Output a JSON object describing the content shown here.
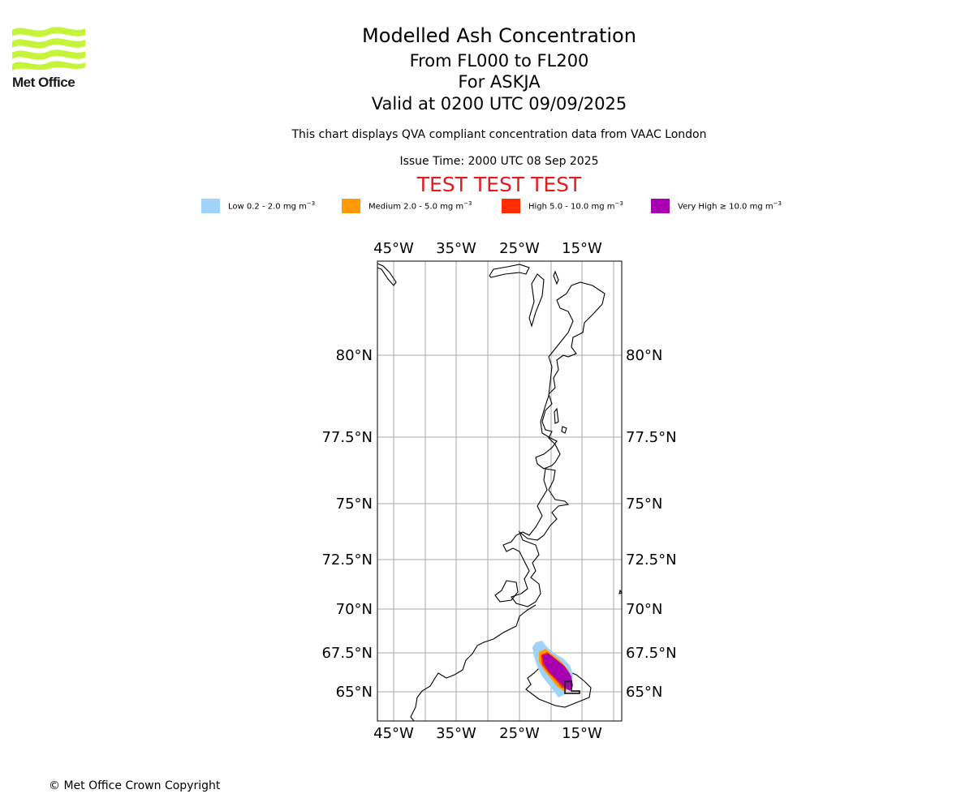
{
  "header": {
    "title": "Modelled Ash Concentration",
    "level_range": "From FL000 to FL200",
    "volcano": "For ASKJA",
    "valid_time": "Valid at 0200 UTC 09/09/2025",
    "description": "This chart displays QVA compliant concentration data from VAAC London",
    "issue_time": "Issue Time: 2000 UTC 08 Sep 2025",
    "test_banner": "TEST TEST TEST"
  },
  "logo": {
    "text": "Met Office",
    "color": "#c6f43a",
    "icon": "met-office-wave-logo"
  },
  "legend": [
    {
      "label_main": "Low 0.2 - 2.0 mg m",
      "exponent": "−3",
      "color": "#9fd3fb"
    },
    {
      "label_main": "Medium 2.0 - 5.0 mg m",
      "exponent": "−3",
      "color": "#ff9a00"
    },
    {
      "label_main": "High 5.0 - 10.0 mg m",
      "exponent": "−3",
      "color": "#ff2d00"
    },
    {
      "label_main": "Very High ≥ 10.0 mg m",
      "exponent": "−3",
      "color": "#a800b0"
    }
  ],
  "map": {
    "lon_ticks": [
      "45°W",
      "35°W",
      "25°W",
      "15°W"
    ],
    "lat_ticks": [
      "80°N",
      "77.5°N",
      "75°N",
      "72.5°N",
      "70°N",
      "67.5°N",
      "65°N"
    ],
    "grid_color": "#aaaaaa",
    "coast_color": "#000000"
  },
  "footer": {
    "copyright": "© Met Office Crown Copyright"
  }
}
